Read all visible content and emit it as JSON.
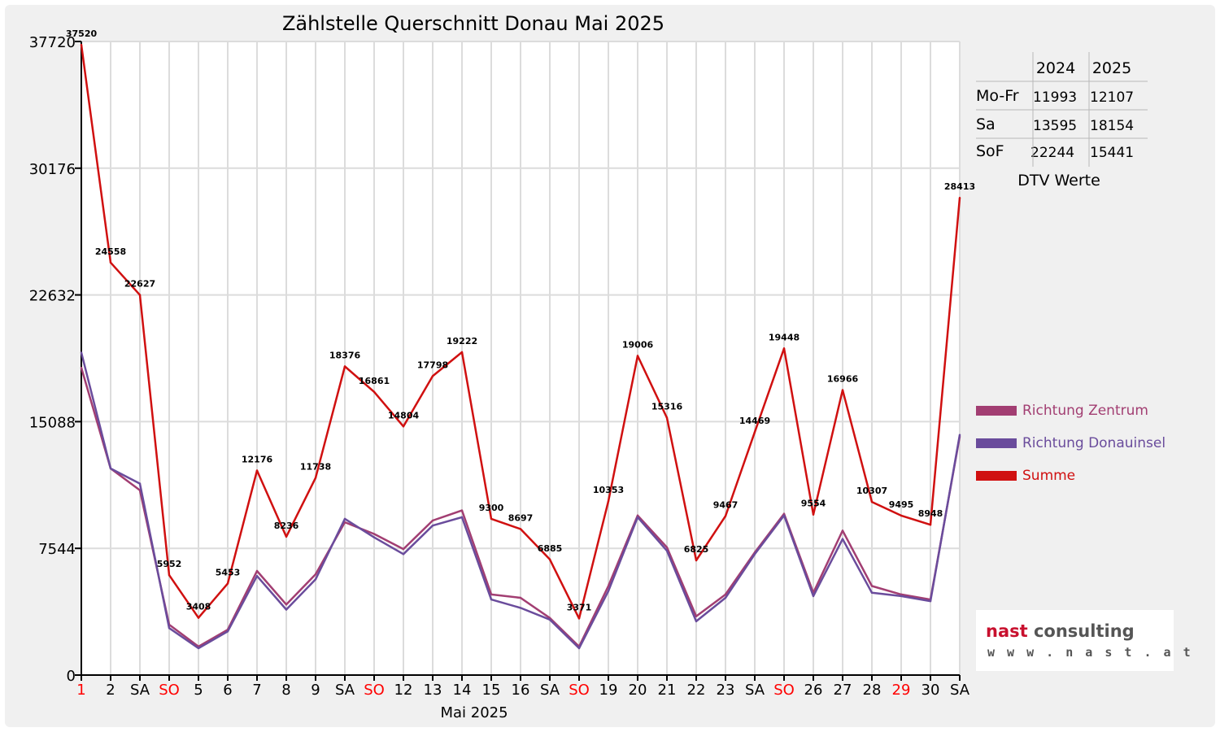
{
  "chart_data": {
    "type": "line",
    "title": "Zählstelle Querschnitt Donau Mai 2025",
    "xlabel": "Mai 2025",
    "ylabel": "",
    "ylim": [
      0,
      37720
    ],
    "yticks": [
      0,
      7544,
      15088,
      22632,
      30176,
      37720
    ],
    "ytick_labels": [
      "0",
      "7544",
      "15088",
      "22632",
      "30176",
      "37720"
    ],
    "categories": [
      "1",
      "2",
      "SA",
      "SO",
      "5",
      "6",
      "7",
      "8",
      "9",
      "SA",
      "SO",
      "12",
      "13",
      "14",
      "15",
      "16",
      "SA",
      "SO",
      "19",
      "20",
      "21",
      "22",
      "23",
      "SA",
      "SO",
      "26",
      "27",
      "28",
      "29",
      "30",
      "SA"
    ],
    "red_categories": [
      0,
      3,
      10,
      17,
      24,
      28
    ],
    "series": [
      {
        "name": "Richtung Zentrum",
        "color": "#a23e72",
        "values": [
          18300,
          12300,
          11000,
          3000,
          1700,
          2700,
          6200,
          4200,
          6000,
          9100,
          8400,
          7500,
          9200,
          9800,
          4800,
          4600,
          3400,
          1700,
          5300,
          9500,
          7600,
          3500,
          4800,
          7300,
          9600,
          4900,
          8600,
          5300,
          4800,
          4500,
          14200
        ]
      },
      {
        "name": "Richtung Donauinsel",
        "color": "#6a4c9c",
        "values": [
          19200,
          12300,
          11400,
          2800,
          1600,
          2600,
          5900,
          3900,
          5700,
          9300,
          8200,
          7200,
          8900,
          9400,
          4500,
          4000,
          3300,
          1600,
          5000,
          9400,
          7400,
          3200,
          4600,
          7200,
          9500,
          4700,
          8100,
          4900,
          4700,
          4400,
          14300
        ]
      },
      {
        "name": "Summe",
        "color": "#d01010",
        "values": [
          37520,
          24558,
          22627,
          5952,
          3408,
          5453,
          12176,
          8236,
          11738,
          18376,
          16861,
          14804,
          17798,
          19222,
          9300,
          8697,
          6885,
          3371,
          10353,
          19006,
          15316,
          6825,
          9467,
          14469,
          19448,
          9554,
          16966,
          10307,
          9495,
          8948,
          28413
        ]
      }
    ],
    "data_labels": [
      "37520",
      "24558",
      "22627",
      "5952",
      "3408",
      "5453",
      "12176",
      "8236",
      "11738",
      "18376",
      "16861",
      "14804",
      "17798",
      "19222",
      "9300",
      "8697",
      "6885",
      "3371",
      "10353",
      "19006",
      "15316",
      "6825",
      "9467",
      "14469",
      "19448",
      "9554",
      "16966",
      "10307",
      "9495",
      "8948",
      "28413"
    ],
    "legend_position": "right"
  },
  "dtv_table": {
    "caption": "DTV Werte",
    "years": [
      "2024",
      "2025"
    ],
    "rows": [
      {
        "label": "Mo-Fr",
        "v2024": "11993",
        "v2025": "12107"
      },
      {
        "label": "Sa",
        "v2024": "13595",
        "v2025": "18154"
      },
      {
        "label": "SoF",
        "v2024": "22244",
        "v2025": "15441"
      }
    ]
  },
  "logo": {
    "brand_a": "nast",
    "brand_b": " consulting",
    "url": "w w w . n a s t . a t"
  },
  "colors": {
    "grid": "#dcdcdc",
    "red_day": "#ff0000",
    "logo_red": "#c8102e",
    "logo_gray": "#555555"
  }
}
